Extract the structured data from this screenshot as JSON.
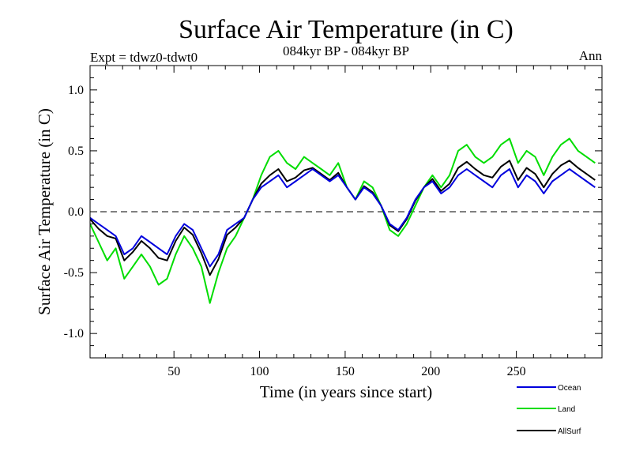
{
  "chart_data": {
    "type": "line",
    "title": "Surface Air Temperature (in C)",
    "subtitle_left": "Expt = tdwz0-tdwt0",
    "subtitle_center": "084kyr BP - 084kyr BP",
    "subtitle_right": "Ann",
    "xlabel": "Time (in years since start)",
    "ylabel": "Surface Air Temperature (in C)",
    "xlim": [
      1,
      300
    ],
    "ylim": [
      -1.2,
      1.2
    ],
    "x_ticks": [
      50,
      100,
      150,
      200,
      250
    ],
    "x_tick_labels": [
      "50",
      "100",
      "150",
      "200",
      "250"
    ],
    "y_ticks": [
      -1.0,
      -0.5,
      0.0,
      0.5,
      1.0
    ],
    "y_tick_labels": [
      "-1.0",
      "-0.5",
      "0.0",
      "0.5",
      "1.0"
    ],
    "zero_line": true,
    "x_step": 5,
    "series": [
      {
        "name": "Ocean",
        "color": "#0000dd",
        "x_start": 1,
        "values": [
          -0.05,
          -0.1,
          -0.15,
          -0.2,
          -0.35,
          -0.3,
          -0.2,
          -0.25,
          -0.3,
          -0.35,
          -0.2,
          -0.1,
          -0.15,
          -0.3,
          -0.45,
          -0.35,
          -0.15,
          -0.1,
          -0.05,
          0.1,
          0.2,
          0.25,
          0.3,
          0.2,
          0.25,
          0.3,
          0.35,
          0.3,
          0.25,
          0.3,
          0.2,
          0.1,
          0.2,
          0.15,
          0.05,
          -0.1,
          -0.15,
          -0.05,
          0.1,
          0.2,
          0.25,
          0.15,
          0.2,
          0.3,
          0.35,
          0.3,
          0.25,
          0.2,
          0.3,
          0.35,
          0.2,
          0.3,
          0.25,
          0.15,
          0.25,
          0.3,
          0.35,
          0.3,
          0.25,
          0.2
        ]
      },
      {
        "name": "Land",
        "color": "#00dd00",
        "x_start": 1,
        "values": [
          -0.1,
          -0.25,
          -0.4,
          -0.3,
          -0.55,
          -0.45,
          -0.35,
          -0.45,
          -0.6,
          -0.55,
          -0.35,
          -0.2,
          -0.3,
          -0.45,
          -0.75,
          -0.5,
          -0.3,
          -0.2,
          -0.05,
          0.1,
          0.3,
          0.45,
          0.5,
          0.4,
          0.35,
          0.45,
          0.4,
          0.35,
          0.3,
          0.4,
          0.2,
          0.1,
          0.25,
          0.2,
          0.05,
          -0.15,
          -0.2,
          -0.1,
          0.05,
          0.2,
          0.3,
          0.2,
          0.3,
          0.5,
          0.55,
          0.45,
          0.4,
          0.45,
          0.55,
          0.6,
          0.4,
          0.5,
          0.45,
          0.3,
          0.45,
          0.55,
          0.6,
          0.5,
          0.45,
          0.4
        ]
      },
      {
        "name": "AllSurf",
        "color": "#000000",
        "x_start": 1,
        "values": [
          -0.06,
          -0.14,
          -0.2,
          -0.22,
          -0.4,
          -0.33,
          -0.24,
          -0.3,
          -0.38,
          -0.4,
          -0.24,
          -0.13,
          -0.19,
          -0.34,
          -0.52,
          -0.39,
          -0.19,
          -0.13,
          -0.05,
          0.1,
          0.23,
          0.3,
          0.35,
          0.25,
          0.28,
          0.34,
          0.36,
          0.31,
          0.26,
          0.32,
          0.2,
          0.1,
          0.21,
          0.16,
          0.05,
          -0.11,
          -0.16,
          -0.06,
          0.09,
          0.2,
          0.27,
          0.17,
          0.23,
          0.36,
          0.41,
          0.35,
          0.3,
          0.28,
          0.37,
          0.42,
          0.26,
          0.36,
          0.31,
          0.2,
          0.31,
          0.38,
          0.42,
          0.36,
          0.31,
          0.26
        ]
      }
    ],
    "legend_position": "bottom-right"
  }
}
